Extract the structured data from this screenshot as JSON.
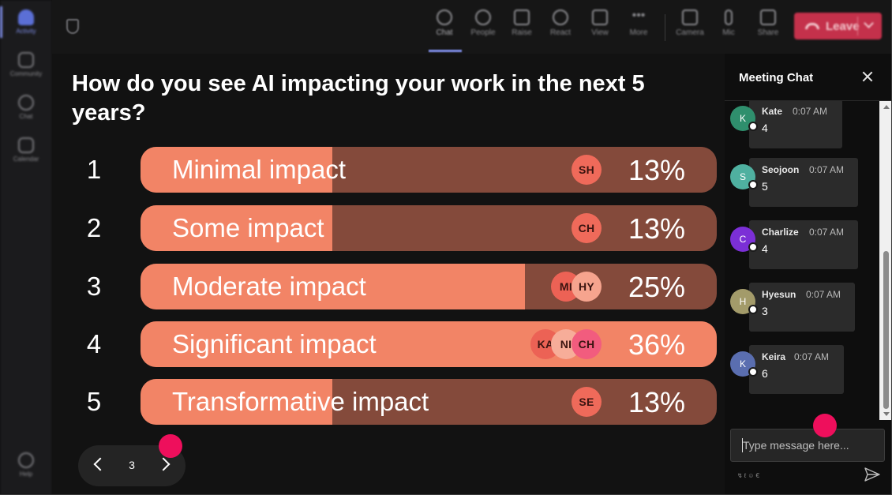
{
  "rail": {
    "items": [
      {
        "label": "Activity"
      },
      {
        "label": "Community"
      },
      {
        "label": "Chat"
      },
      {
        "label": "Calendar"
      }
    ],
    "help_label": "Help"
  },
  "toolbar": {
    "items": [
      {
        "label": "Chat",
        "icon": "chat-bubble-icon"
      },
      {
        "label": "People",
        "icon": "person-icon"
      },
      {
        "label": "Raise",
        "icon": "raise-hand-icon"
      },
      {
        "label": "React",
        "icon": "smiley-icon"
      },
      {
        "label": "View",
        "icon": "grid-view-icon"
      },
      {
        "label": "More",
        "icon": "more-dots-icon"
      },
      {
        "label": "Camera",
        "icon": "camera-icon"
      },
      {
        "label": "Mic",
        "icon": "microphone-icon"
      },
      {
        "label": "Share",
        "icon": "share-screen-icon"
      }
    ],
    "active": "Chat",
    "leave_label": "Leave",
    "leave_color": "#c4314b"
  },
  "poll": {
    "question": "How do you see AI impacting your work in the next 5 years?",
    "bar_fill_color": "#f28466",
    "bar_track_color": "#844a3b",
    "options": [
      {
        "number": "1",
        "label": "Minimal impact",
        "percent_label": "13%",
        "fill_fraction": 0.13,
        "voters": [
          {
            "initials": "SH",
            "color": "#ef6a5a"
          }
        ]
      },
      {
        "number": "2",
        "label": "Some impact",
        "percent_label": "13%",
        "fill_fraction": 0.13,
        "voters": [
          {
            "initials": "CH",
            "color": "#ef6a5a"
          }
        ]
      },
      {
        "number": "3",
        "label": "Moderate impact",
        "percent_label": "25%",
        "fill_fraction": 0.25,
        "voters": [
          {
            "initials": "MI",
            "color": "#ec6255"
          },
          {
            "initials": "HY",
            "color": "#f6a48e"
          }
        ]
      },
      {
        "number": "4",
        "label": "Significant impact",
        "percent_label": "36%",
        "fill_fraction": 0.36,
        "voters": [
          {
            "initials": "KA",
            "color": "#ec6255"
          },
          {
            "initials": "NI",
            "color": "#f7ad99"
          },
          {
            "initials": "CH",
            "color": "#f25c7e"
          }
        ]
      },
      {
        "number": "5",
        "label": "Transformative impact",
        "percent_label": "13%",
        "fill_fraction": 0.13,
        "voters": [
          {
            "initials": "SE",
            "color": "#ef6a5a"
          }
        ]
      }
    ]
  },
  "pager": {
    "current_page": "3"
  },
  "chat": {
    "title": "Meeting Chat",
    "messages": [
      {
        "initial": "K",
        "name": "Kate",
        "time": "0:07 AM",
        "text": "4",
        "avatar_color": "#2f8f6d"
      },
      {
        "initial": "S",
        "name": "Seojoon",
        "time": "0:07 AM",
        "text": "5",
        "avatar_color": "#4fb0a0"
      },
      {
        "initial": "C",
        "name": "Charlize",
        "time": "0:07 AM",
        "text": "4",
        "avatar_color": "#7b2fd6"
      },
      {
        "initial": "H",
        "name": "Hyesun",
        "time": "0:07 AM",
        "text": "3",
        "avatar_color": "#a39b6a"
      },
      {
        "initial": "K",
        "name": "Keira",
        "time": "0:07 AM",
        "text": "6",
        "avatar_color": "#5a6eb0"
      }
    ],
    "input_placeholder": "Type message here...",
    "tool_icons": [
      "format-icon",
      "attach-icon",
      "emoji-icon",
      "gif-icon"
    ]
  },
  "accent_color": "#ee0f5c"
}
